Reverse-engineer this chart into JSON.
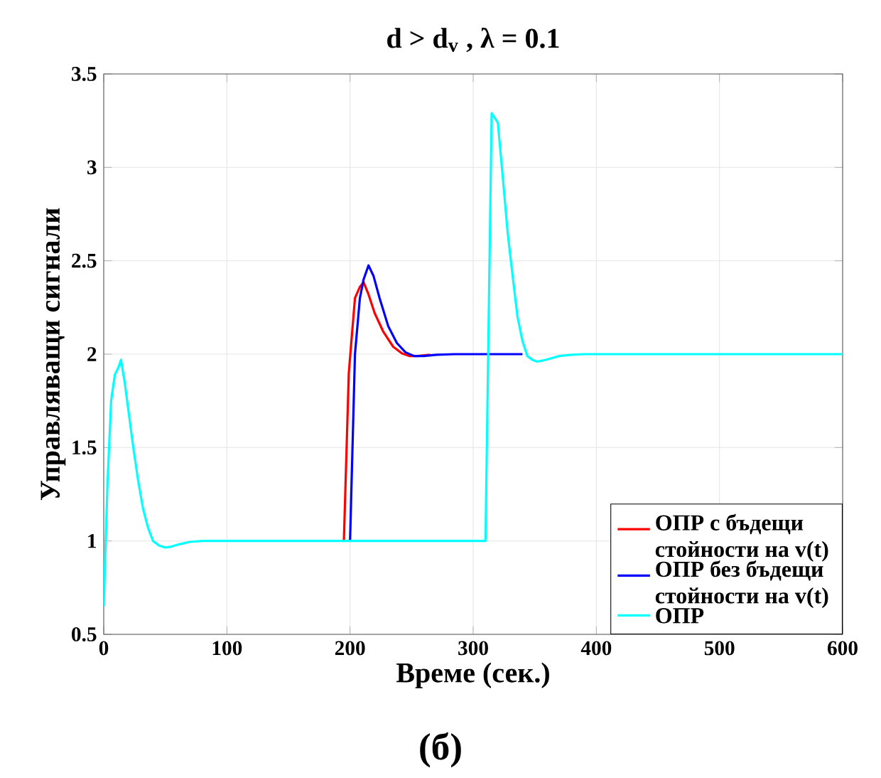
{
  "chart_data": {
    "type": "line",
    "title": "d > d$_{v}$ , λ = 0.1",
    "xlabel": "Време (сек.)",
    "ylabel": "Управляващи сигнали",
    "annotations": [
      "(б)"
    ],
    "xlim": [
      0,
      600
    ],
    "ylim": [
      0.5,
      3.5
    ],
    "xticks": [
      0,
      100,
      200,
      300,
      400,
      500,
      600
    ],
    "yticks": [
      0.5,
      1,
      1.5,
      2,
      2.5,
      3,
      3.5
    ],
    "grid": true,
    "legend": "bottom right",
    "line_style": "solid",
    "series": [
      {
        "name": "ОПР с бъдещи стойности на v(t)",
        "color": "#ff0000",
        "x": [
          195,
          199,
          204,
          208,
          211,
          215,
          220,
          227,
          235,
          242,
          248,
          255,
          265
        ],
        "values": [
          1.0,
          1.9,
          2.3,
          2.36,
          2.385,
          2.32,
          2.22,
          2.12,
          2.04,
          2.005,
          1.99,
          1.99,
          1.997
        ]
      },
      {
        "name": "ОПР без бъдещи стойности на v(t)",
        "color": "#0000ff",
        "x": [
          200,
          204,
          208,
          211,
          215,
          219,
          224,
          231,
          238,
          245,
          252,
          260,
          270,
          285,
          340
        ],
        "values": [
          1.0,
          2.0,
          2.3,
          2.4,
          2.475,
          2.42,
          2.3,
          2.15,
          2.06,
          2.01,
          1.99,
          1.99,
          1.997,
          2.0,
          2.0
        ]
      },
      {
        "name": "ОПР",
        "color": "#00ffff",
        "x": [
          0,
          3,
          6,
          9,
          12,
          14,
          17,
          20,
          24,
          28,
          32,
          36,
          40,
          45,
          50,
          55,
          60,
          70,
          80,
          100,
          150,
          200,
          250,
          310,
          315,
          320,
          324,
          328,
          332,
          336,
          340,
          344,
          348,
          352,
          356,
          362,
          370,
          380,
          390,
          400,
          500,
          600
        ],
        "values": [
          0.65,
          1.3,
          1.75,
          1.89,
          1.93,
          1.97,
          1.85,
          1.7,
          1.5,
          1.32,
          1.17,
          1.07,
          1.0,
          0.975,
          0.965,
          0.97,
          0.98,
          0.995,
          1.0,
          1.0,
          1.0,
          1.0,
          1.0,
          1.0,
          3.29,
          3.24,
          2.95,
          2.65,
          2.42,
          2.2,
          2.07,
          1.99,
          1.97,
          1.96,
          1.965,
          1.975,
          1.99,
          1.997,
          2.0,
          2.0,
          2.0,
          2.0
        ]
      }
    ]
  }
}
